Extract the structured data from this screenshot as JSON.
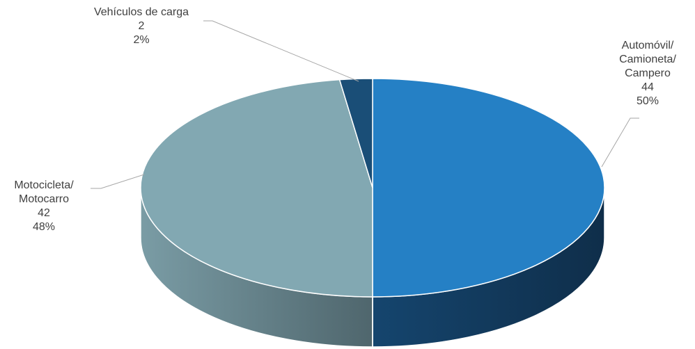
{
  "chart_data": {
    "type": "pie",
    "style": "3d",
    "title": "",
    "slices": [
      {
        "name_lines": [
          "Automóvil/",
          "Camioneta/",
          "Campero"
        ],
        "value": 44,
        "percent": "50%",
        "color": "#2580c5"
      },
      {
        "name_lines": [
          "Motocicleta/",
          "Motocarro"
        ],
        "value": 42,
        "percent": "48%",
        "color": "#82a8b2"
      },
      {
        "name_lines": [
          "Vehículos de carga"
        ],
        "value": 2,
        "percent": "2%",
        "color": "#1a4e77"
      }
    ]
  }
}
